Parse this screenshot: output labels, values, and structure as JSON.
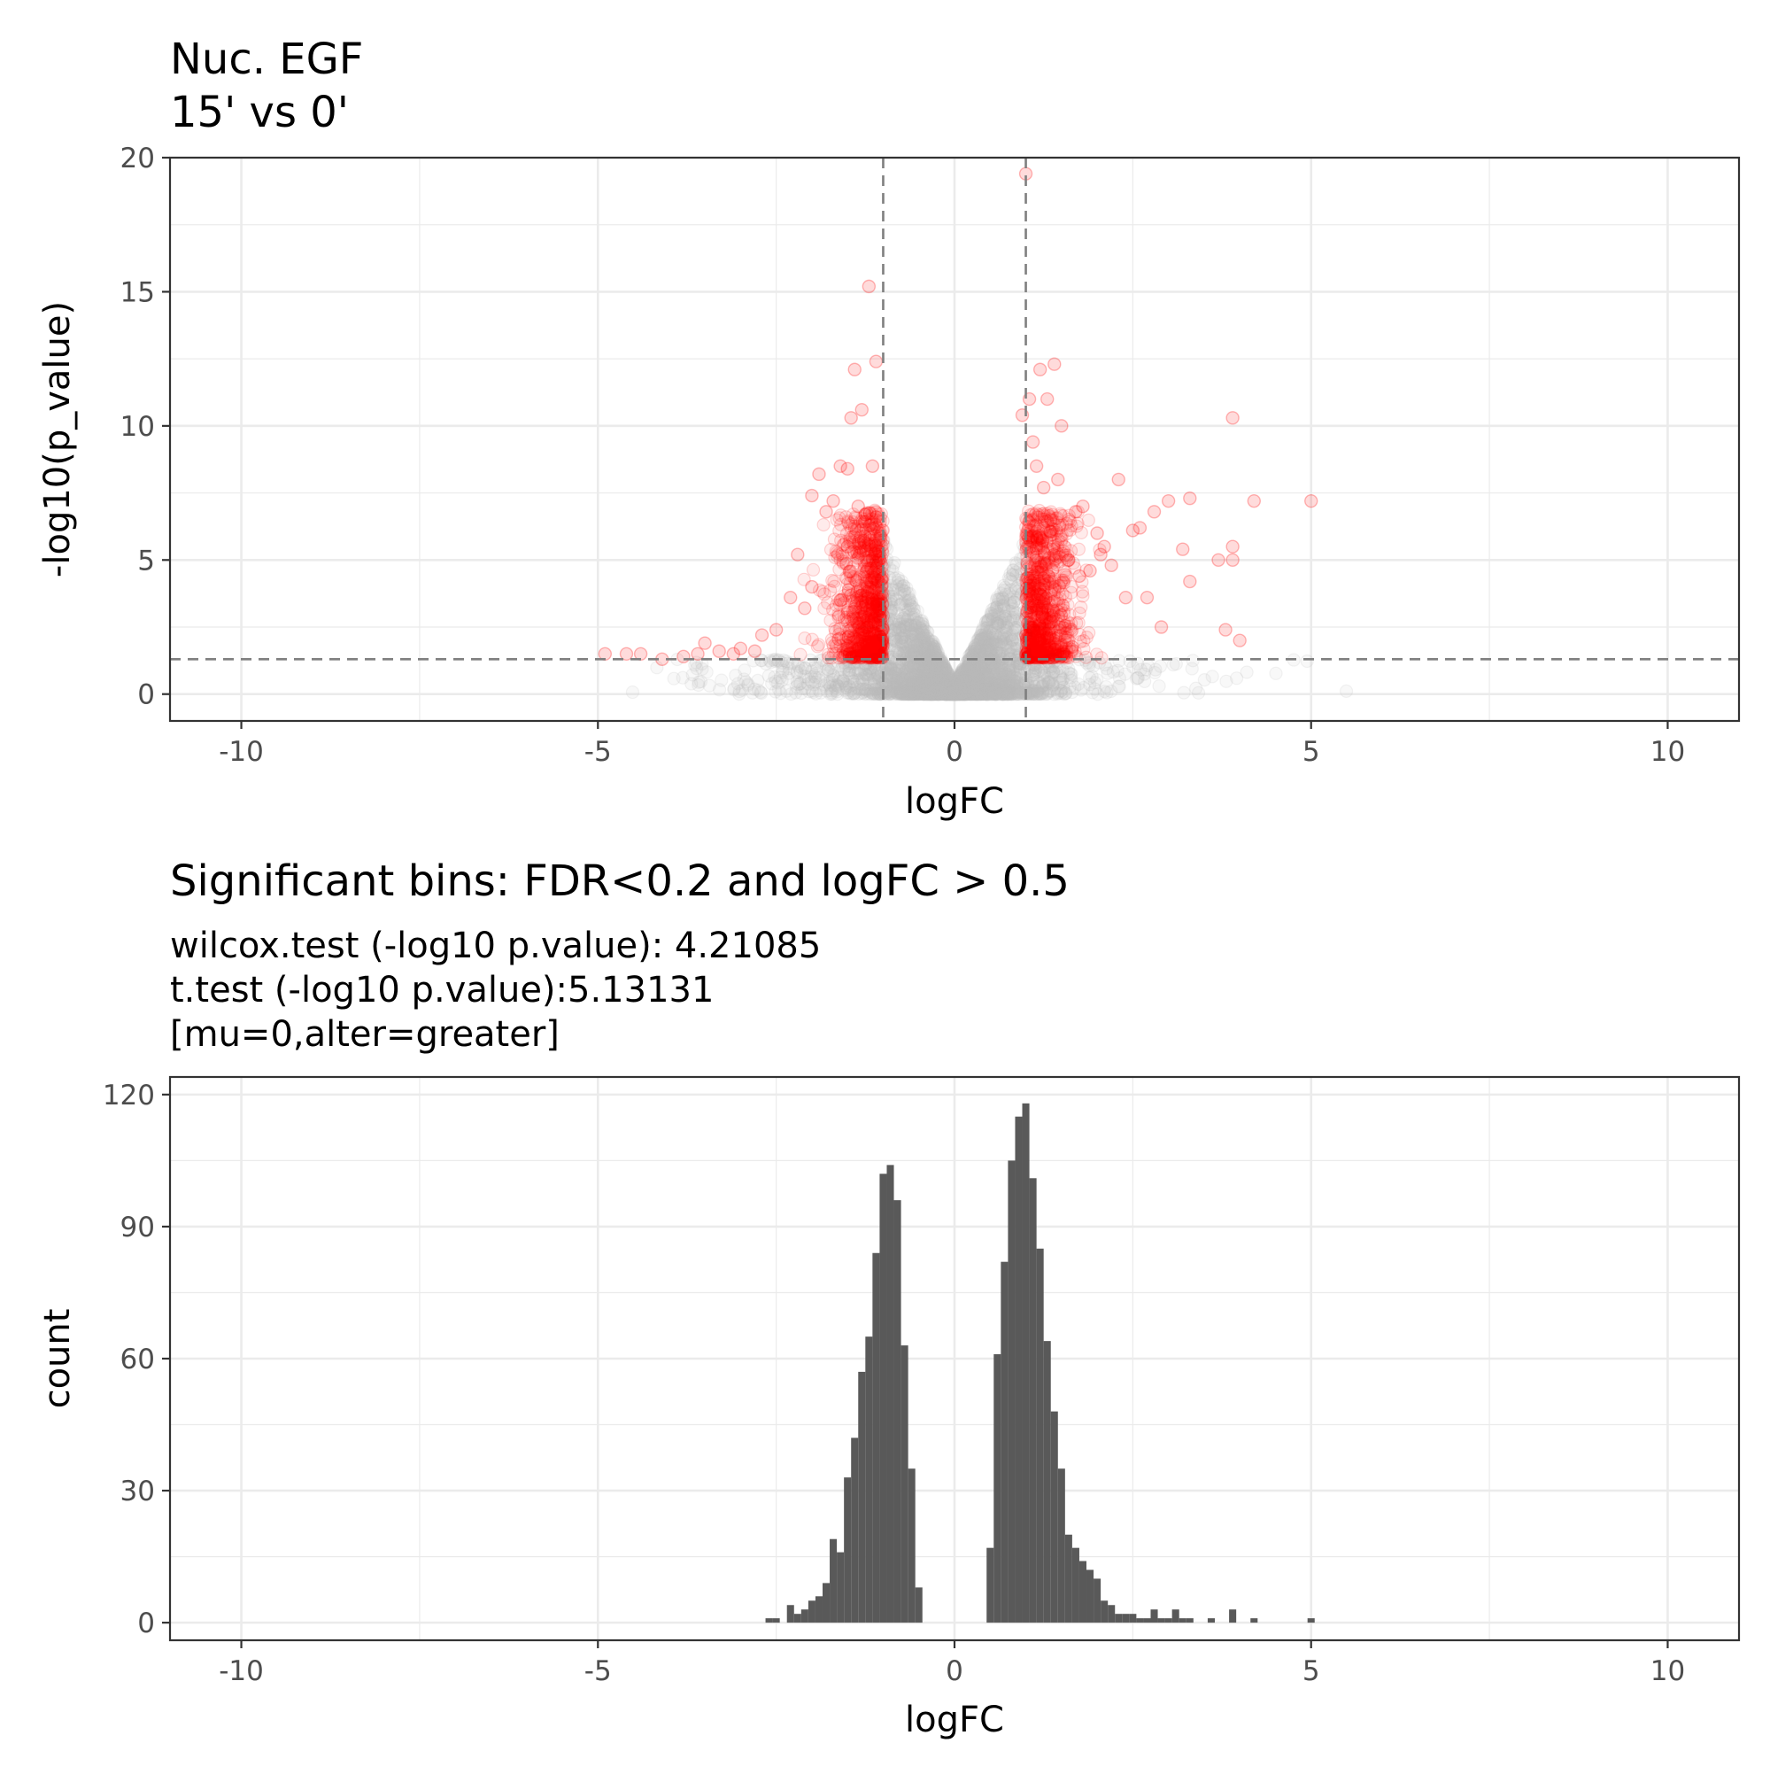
{
  "chart_data": [
    {
      "type": "scatter",
      "title": "Nuc. EGF",
      "subtitle": "15' vs 0'",
      "xlabel": "logFC",
      "ylabel": "-log10(p_value)",
      "xlim": [
        -11,
        11
      ],
      "ylim": [
        -1,
        20
      ],
      "xticks": [
        "-10",
        "-5",
        "0",
        "5",
        "10"
      ],
      "yticks": [
        "0",
        "5",
        "10",
        "15",
        "20"
      ],
      "x_tick_values": [
        -10,
        -5,
        0,
        5,
        10
      ],
      "y_tick_values": [
        0,
        5,
        10,
        15,
        20
      ],
      "reference_lines": {
        "vertical_x": [
          -1,
          1
        ],
        "horizontal_y": 1.3
      },
      "colors": {
        "significant": "#ff0000",
        "not_significant": "#bebebe",
        "reference_line": "#7f7f7f"
      },
      "grid": true,
      "point_alpha": 0.12,
      "series": [
        {
          "values_x": [
            -1.2,
            1.0,
            -1.1,
            -1.4,
            -1.3,
            -1.45,
            1.4,
            1.2,
            1.3,
            1.05,
            0.95,
            1.1,
            1.15,
            1.25,
            1.5,
            3.9,
            2.3,
            3.0,
            4.2,
            5.0,
            3.3,
            2.8,
            3.2,
            3.3,
            3.9,
            3.7,
            3.9,
            3.8,
            4.0,
            2.9,
            -1.5,
            -1.6,
            -1.9,
            -2.0,
            -1.8,
            -1.7,
            -1.35,
            -1.25,
            -1.15,
            -1.5,
            -1.1,
            -2.2,
            -2.5,
            -2.7,
            -2.8,
            -3.0,
            -3.1,
            -3.3,
            -3.5,
            -3.6,
            -3.8,
            -4.1,
            -4.4,
            -4.6,
            -4.9,
            -2.3,
            -2.0,
            -2.1,
            -1.6,
            1.7,
            1.8,
            2.0,
            2.1,
            2.5,
            2.6,
            2.2,
            1.9,
            1.6,
            2.4,
            2.7,
            1.45,
            1.35,
            2.05,
            1.75
          ],
          "values_y": [
            15.2,
            19.4,
            12.4,
            12.1,
            10.6,
            10.3,
            12.3,
            12.1,
            11.0,
            11.0,
            10.4,
            9.4,
            8.5,
            7.7,
            10.0,
            10.3,
            8.0,
            7.2,
            7.2,
            7.2,
            7.3,
            6.8,
            5.4,
            4.2,
            5.5,
            5.0,
            5.0,
            2.4,
            2.0,
            2.5,
            8.4,
            8.5,
            8.2,
            7.4,
            6.8,
            7.2,
            7.0,
            6.7,
            8.5,
            5.5,
            4.9,
            5.2,
            2.4,
            2.2,
            1.6,
            1.7,
            1.5,
            1.6,
            1.9,
            1.5,
            1.4,
            1.3,
            1.5,
            1.5,
            1.5,
            3.6,
            4.0,
            3.2,
            3.5,
            6.8,
            7.0,
            6.0,
            5.5,
            6.1,
            6.2,
            4.8,
            4.6,
            5.0,
            3.6,
            3.6,
            8.0,
            6.5,
            5.2,
            4.4
          ]
        }
      ]
    },
    {
      "type": "bar",
      "title": "Significant bins: FDR<0.2 and logFC > 0.5",
      "subtitle_lines": [
        "wilcox.test (-log10 p.value): 4.21085",
        "t.test (-log10 p.value):5.13131",
        "[mu=0,alter=greater]"
      ],
      "xlabel": "logFC",
      "ylabel": "count",
      "xlim": [
        -11,
        11
      ],
      "ylim": [
        -4,
        124
      ],
      "xticks": [
        "-10",
        "-5",
        "0",
        "5",
        "10"
      ],
      "yticks": [
        "0",
        "30",
        "60",
        "90",
        "120"
      ],
      "x_tick_values": [
        -10,
        -5,
        0,
        5,
        10
      ],
      "y_tick_values": [
        0,
        30,
        60,
        90,
        120
      ],
      "bin_width": 0.1,
      "bar_color": "#595959",
      "grid": true,
      "bins_x": [
        -2.6,
        -2.5,
        -2.3,
        -2.2,
        -2.1,
        -2.0,
        -1.9,
        -1.8,
        -1.7,
        -1.6,
        -1.5,
        -1.4,
        -1.3,
        -1.2,
        -1.1,
        -1.0,
        -0.9,
        -0.8,
        -0.7,
        -0.6,
        -0.5,
        0.5,
        0.6,
        0.7,
        0.8,
        0.9,
        1.0,
        1.1,
        1.2,
        1.3,
        1.4,
        1.5,
        1.6,
        1.7,
        1.8,
        1.9,
        2.0,
        2.1,
        2.2,
        2.3,
        2.4,
        2.5,
        2.6,
        2.7,
        2.8,
        2.9,
        3.0,
        3.1,
        3.2,
        3.3,
        3.6,
        3.9,
        4.2,
        5.0
      ],
      "counts": [
        1,
        1,
        4,
        2,
        3,
        5,
        6,
        9,
        19,
        16,
        33,
        42,
        57,
        65,
        84,
        102,
        104,
        96,
        63,
        35,
        8,
        17,
        61,
        82,
        105,
        115,
        118,
        101,
        85,
        64,
        48,
        35,
        20,
        17,
        14,
        12,
        10,
        5,
        4,
        2,
        2,
        2,
        1,
        1,
        3,
        1,
        1,
        3,
        1,
        1,
        1,
        3,
        1,
        1
      ]
    }
  ]
}
